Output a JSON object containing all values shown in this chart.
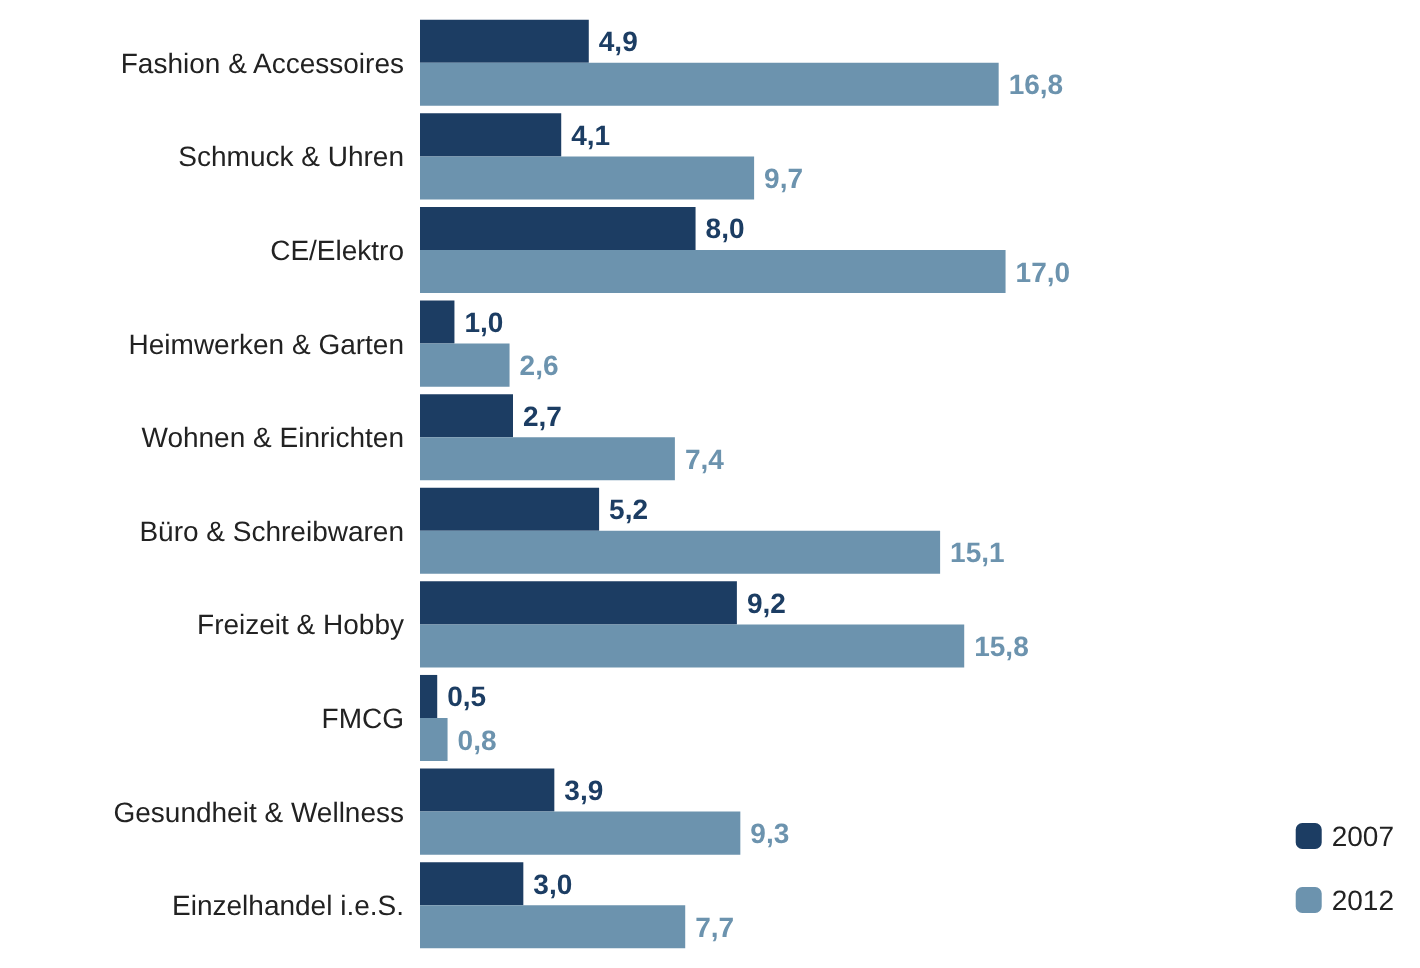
{
  "chart_data": {
    "type": "bar",
    "orientation": "horizontal",
    "legend": "bottom right",
    "categories": [
      "Fashion & Accessoires",
      "Schmuck & Uhren",
      "CE/Elektro",
      "Heimwerken & Garten",
      "Wohnen & Einrichten",
      "Büro & Schreibwaren",
      "Freizeit & Hobby",
      "FMCG",
      "Gesundheit & Wellness",
      "Einzelhandel i.e.S."
    ],
    "series": [
      {
        "name": "2007",
        "color": "#1c3d63",
        "values": [
          4.9,
          4.1,
          8.0,
          1.0,
          2.7,
          5.2,
          9.2,
          0.5,
          3.9,
          3.0
        ],
        "value_labels": [
          "4,9",
          "4,1",
          "8,0",
          "1,0",
          "2,7",
          "5,2",
          "9,2",
          "0,5",
          "3,9",
          "3,0"
        ]
      },
      {
        "name": "2012",
        "color": "#6c93ae",
        "values": [
          16.8,
          9.7,
          17.0,
          2.6,
          7.4,
          15.1,
          15.8,
          0.8,
          9.3,
          7.7
        ],
        "value_labels": [
          "16,8",
          "9,7",
          "17,0",
          "2,6",
          "7,4",
          "15,1",
          "15,8",
          "0,8",
          "9,3",
          "7,7"
        ]
      }
    ]
  }
}
